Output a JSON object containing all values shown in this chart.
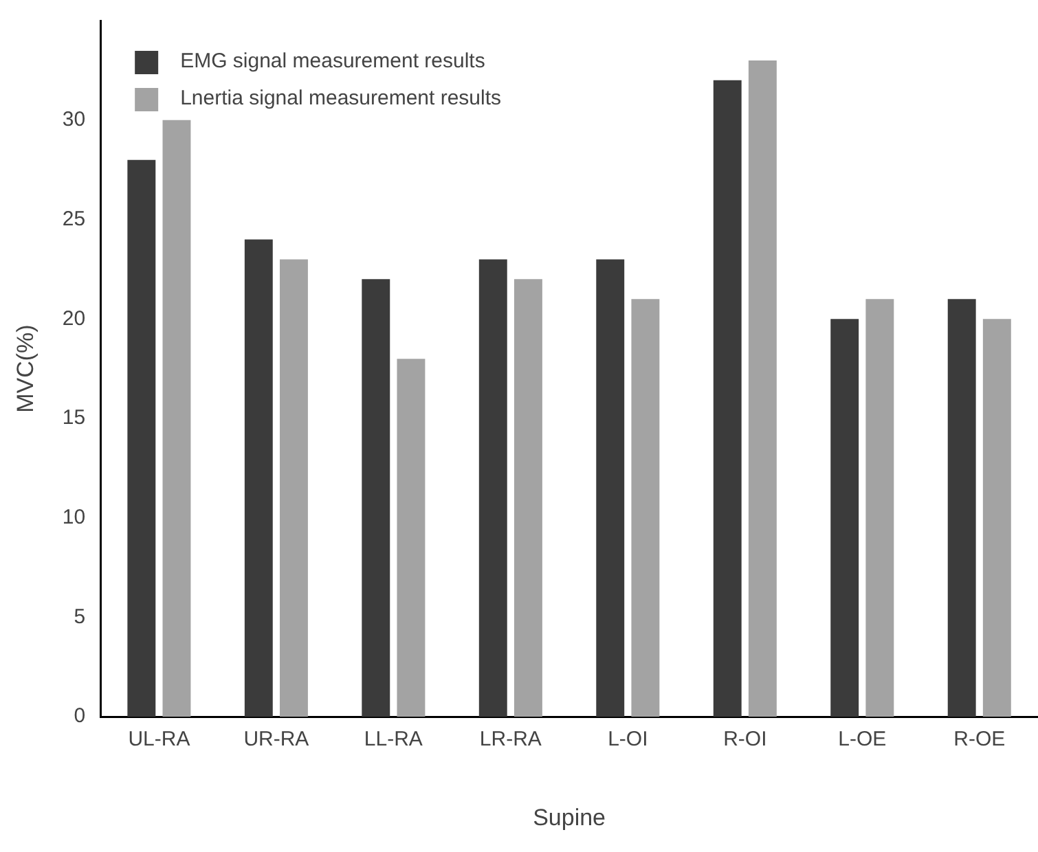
{
  "chart_data": {
    "type": "bar",
    "xlabel": "Supine",
    "ylabel": "MVC(%)",
    "categories": [
      "UL-RA",
      "UR-RA",
      "LL-RA",
      "LR-RA",
      "L-OI",
      "R-OI",
      "L-OE",
      "R-OE"
    ],
    "series": [
      {
        "name": "EMG signal measurement results",
        "color": "#3b3b3b",
        "values": [
          28,
          24,
          22,
          23,
          23,
          32,
          20,
          21
        ]
      },
      {
        "name": "Lnertia signal measurement results",
        "color": "#a3a3a3",
        "values": [
          30,
          23,
          18,
          22,
          21,
          33,
          21,
          20
        ]
      }
    ],
    "ylim": [
      0,
      35
    ],
    "yticks": [
      0,
      5,
      10,
      15,
      20,
      25,
      30
    ],
    "grid": false,
    "legend": "top left"
  }
}
